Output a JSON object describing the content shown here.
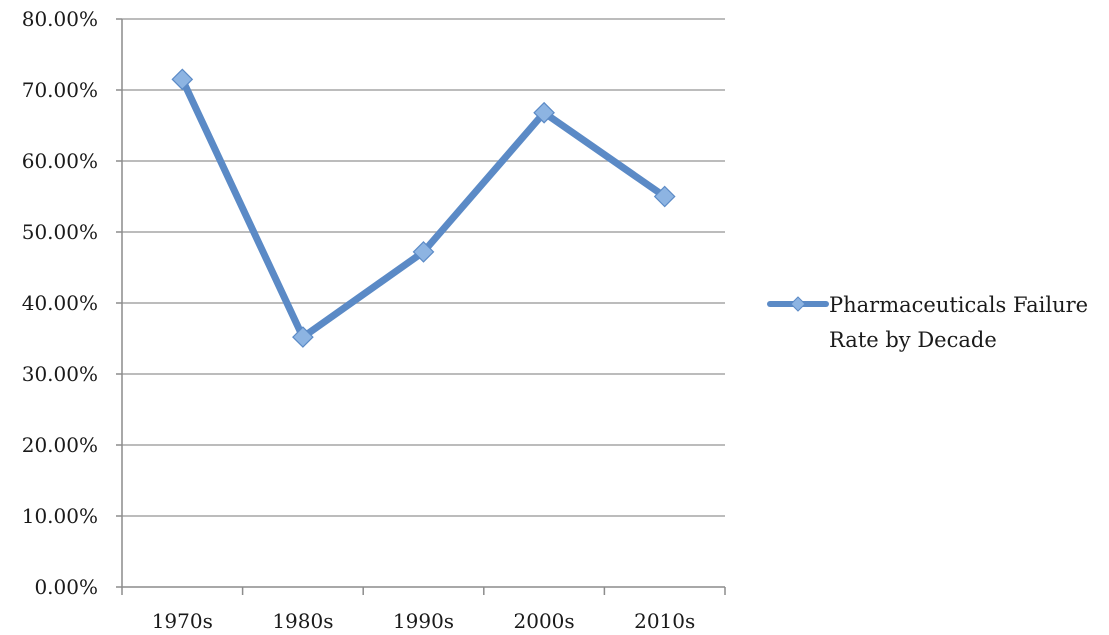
{
  "chart_data": {
    "type": "line",
    "categories": [
      "1970s",
      "1980s",
      "1990s",
      "2000s",
      "2010s"
    ],
    "series": [
      {
        "name": "Pharmaceuticals Failure Rate by Decade",
        "values": [
          71.5,
          35.2,
          47.2,
          66.8,
          55.0
        ],
        "color": "#5b8ac6",
        "marker_color": "#8db4e2"
      }
    ],
    "ylim": [
      0,
      80
    ],
    "y_ticks": [
      "0.00%",
      "10.00%",
      "20.00%",
      "30.00%",
      "40.00%",
      "50.00%",
      "60.00%",
      "70.00%",
      "80.00%"
    ],
    "grid": true,
    "legend_position": "right",
    "legend_lines": [
      "Pharmaceuticals Failure",
      "Rate by Decade"
    ],
    "title": "",
    "xlabel": "",
    "ylabel": ""
  }
}
